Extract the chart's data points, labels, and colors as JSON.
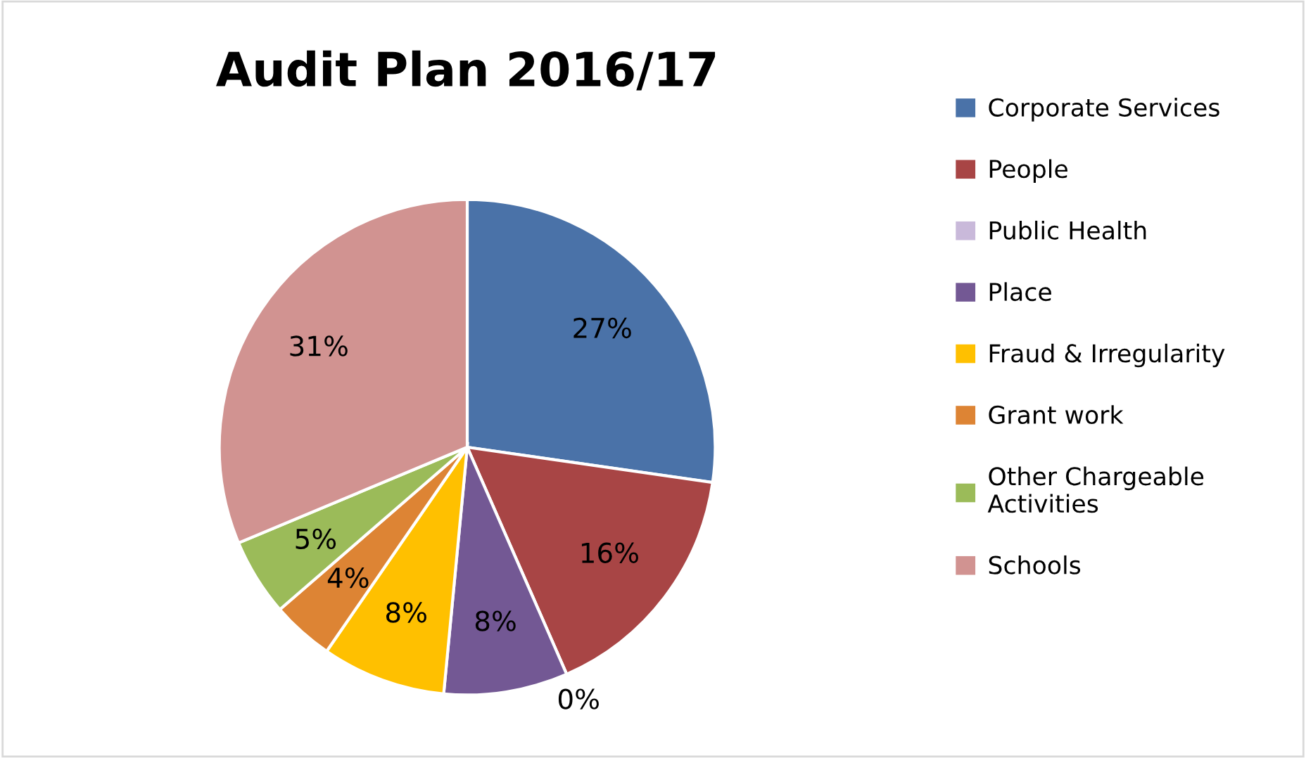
{
  "chart_data": {
    "type": "pie",
    "title": "Audit Plan 2016/17",
    "categories": [
      "Corporate Services",
      "People",
      "Public Health",
      "Place",
      "Fraud & Irregularity",
      "Grant work",
      "Other Chargeable Activities",
      "Schools"
    ],
    "values": [
      27,
      16,
      0,
      8,
      8,
      4,
      5,
      31
    ],
    "colors": [
      "#4a72a8",
      "#a84545",
      "#c9b9da",
      "#735894",
      "#ffc000",
      "#dd8434",
      "#9bbb59",
      "#d19391"
    ],
    "value_labels": [
      "27%",
      "16%",
      "0%",
      "8%",
      "8%",
      "4%",
      "5%",
      "31%"
    ],
    "legend": "right"
  }
}
